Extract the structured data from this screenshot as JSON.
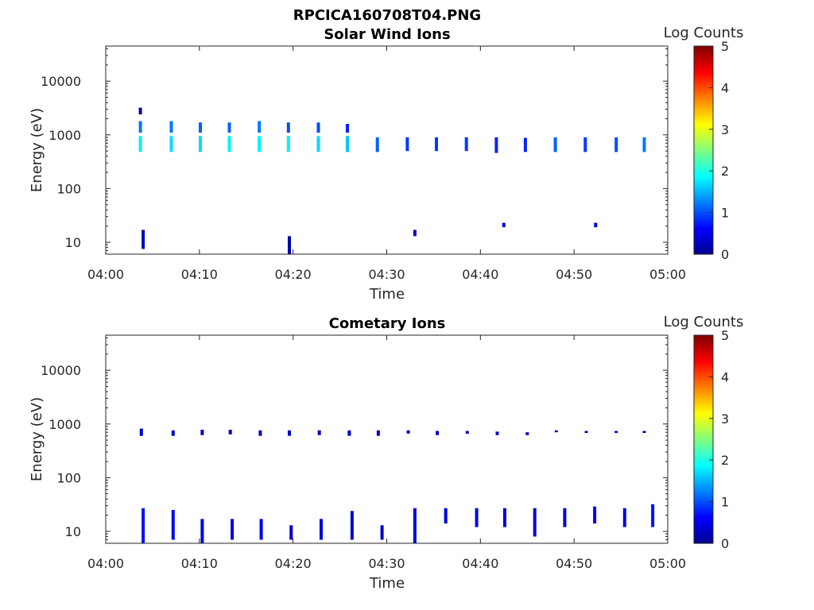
{
  "figure_title": "RPCICA160708T04.PNG",
  "colors": {
    "colormap": [
      "#00008f",
      "#0000ff",
      "#0080ff",
      "#00ffff",
      "#80ff80",
      "#ffff00",
      "#ff8000",
      "#ff0000",
      "#800000"
    ],
    "axis": "#262626"
  },
  "chart_data": [
    {
      "type": "heatmap",
      "title": "Solar Wind Ions",
      "xlabel": "Time",
      "ylabel": "Energy (eV)",
      "xlim": [
        "04:00",
        "05:00"
      ],
      "ylim": [
        6,
        45000
      ],
      "yscale": "log",
      "xticks": [
        "04:00",
        "04:10",
        "04:20",
        "04:30",
        "04:40",
        "04:50",
        "05:00"
      ],
      "yticks": [
        10,
        100,
        1000,
        10000
      ],
      "colorbar": {
        "label": "Log Counts",
        "range": [
          0,
          5
        ],
        "ticks": [
          0,
          1,
          2,
          3,
          4,
          5
        ]
      },
      "cells": [
        {
          "t": 3.7,
          "e_lo": 480,
          "e_hi": 950,
          "v": 1.8
        },
        {
          "t": 3.7,
          "e_lo": 1100,
          "e_hi": 1800,
          "v": 1.2
        },
        {
          "t": 3.7,
          "e_lo": 2400,
          "e_hi": 3200,
          "v": 0.3
        },
        {
          "t": 7.0,
          "e_lo": 480,
          "e_hi": 950,
          "v": 1.7
        },
        {
          "t": 7.0,
          "e_lo": 1100,
          "e_hi": 1800,
          "v": 1.2
        },
        {
          "t": 10.1,
          "e_lo": 480,
          "e_hi": 950,
          "v": 1.7
        },
        {
          "t": 10.1,
          "e_lo": 1100,
          "e_hi": 1700,
          "v": 1.1
        },
        {
          "t": 13.2,
          "e_lo": 480,
          "e_hi": 950,
          "v": 1.8
        },
        {
          "t": 13.2,
          "e_lo": 1100,
          "e_hi": 1700,
          "v": 1.1
        },
        {
          "t": 16.4,
          "e_lo": 480,
          "e_hi": 950,
          "v": 1.8
        },
        {
          "t": 16.4,
          "e_lo": 1100,
          "e_hi": 1800,
          "v": 1.2
        },
        {
          "t": 19.5,
          "e_lo": 480,
          "e_hi": 950,
          "v": 1.8
        },
        {
          "t": 19.5,
          "e_lo": 1100,
          "e_hi": 1700,
          "v": 1.0
        },
        {
          "t": 22.7,
          "e_lo": 480,
          "e_hi": 950,
          "v": 1.7
        },
        {
          "t": 22.7,
          "e_lo": 1100,
          "e_hi": 1700,
          "v": 1.0
        },
        {
          "t": 25.8,
          "e_lo": 480,
          "e_hi": 950,
          "v": 1.6
        },
        {
          "t": 25.8,
          "e_lo": 1100,
          "e_hi": 1600,
          "v": 0.8
        },
        {
          "t": 29.0,
          "e_lo": 480,
          "e_hi": 900,
          "v": 1.1
        },
        {
          "t": 32.2,
          "e_lo": 500,
          "e_hi": 900,
          "v": 0.9
        },
        {
          "t": 35.3,
          "e_lo": 500,
          "e_hi": 900,
          "v": 0.9
        },
        {
          "t": 38.5,
          "e_lo": 500,
          "e_hi": 900,
          "v": 0.9
        },
        {
          "t": 41.7,
          "e_lo": 460,
          "e_hi": 900,
          "v": 0.8
        },
        {
          "t": 44.8,
          "e_lo": 480,
          "e_hi": 880,
          "v": 0.8
        },
        {
          "t": 48.0,
          "e_lo": 480,
          "e_hi": 900,
          "v": 1.1
        },
        {
          "t": 51.2,
          "e_lo": 480,
          "e_hi": 900,
          "v": 0.9
        },
        {
          "t": 54.5,
          "e_lo": 480,
          "e_hi": 900,
          "v": 1.0
        },
        {
          "t": 57.5,
          "e_lo": 480,
          "e_hi": 900,
          "v": 1.2
        },
        {
          "t": 4.0,
          "e_lo": 7.5,
          "e_hi": 17,
          "v": 0.2
        },
        {
          "t": 19.6,
          "e_lo": 6,
          "e_hi": 13,
          "v": 0.2
        },
        {
          "t": 33.0,
          "e_lo": 13,
          "e_hi": 17,
          "v": 0.3
        },
        {
          "t": 42.5,
          "e_lo": 19,
          "e_hi": 23,
          "v": 0.4
        },
        {
          "t": 52.3,
          "e_lo": 19,
          "e_hi": 23,
          "v": 0.4
        }
      ]
    },
    {
      "type": "heatmap",
      "title": "Cometary Ions",
      "xlabel": "Time",
      "ylabel": "Energy (eV)",
      "xlim": [
        "04:00",
        "05:00"
      ],
      "ylim": [
        6,
        45000
      ],
      "yscale": "log",
      "xticks": [
        "04:00",
        "04:10",
        "04:20",
        "04:30",
        "04:40",
        "04:50",
        "05:00"
      ],
      "yticks": [
        10,
        100,
        1000,
        10000
      ],
      "colorbar": {
        "label": "Log Counts",
        "range": [
          0,
          5
        ],
        "ticks": [
          0,
          1,
          2,
          3,
          4,
          5
        ]
      },
      "cells": [
        {
          "t": 3.8,
          "e_lo": 600,
          "e_hi": 820,
          "v": 0.4
        },
        {
          "t": 7.2,
          "e_lo": 600,
          "e_hi": 760,
          "v": 0.3
        },
        {
          "t": 10.3,
          "e_lo": 620,
          "e_hi": 780,
          "v": 0.3
        },
        {
          "t": 13.3,
          "e_lo": 640,
          "e_hi": 780,
          "v": 0.3
        },
        {
          "t": 16.5,
          "e_lo": 600,
          "e_hi": 760,
          "v": 0.3
        },
        {
          "t": 19.6,
          "e_lo": 600,
          "e_hi": 760,
          "v": 0.3
        },
        {
          "t": 22.8,
          "e_lo": 620,
          "e_hi": 760,
          "v": 0.3
        },
        {
          "t": 26.0,
          "e_lo": 600,
          "e_hi": 760,
          "v": 0.3
        },
        {
          "t": 29.1,
          "e_lo": 600,
          "e_hi": 760,
          "v": 0.3
        },
        {
          "t": 32.3,
          "e_lo": 660,
          "e_hi": 760,
          "v": 0.3
        },
        {
          "t": 35.4,
          "e_lo": 620,
          "e_hi": 740,
          "v": 0.3
        },
        {
          "t": 38.6,
          "e_lo": 660,
          "e_hi": 740,
          "v": 0.3
        },
        {
          "t": 41.8,
          "e_lo": 620,
          "e_hi": 720,
          "v": 0.3
        },
        {
          "t": 45.0,
          "e_lo": 620,
          "e_hi": 700,
          "v": 0.3
        },
        {
          "t": 48.1,
          "e_lo": 700,
          "e_hi": 760,
          "v": 0.3
        },
        {
          "t": 51.3,
          "e_lo": 680,
          "e_hi": 740,
          "v": 0.3
        },
        {
          "t": 54.5,
          "e_lo": 680,
          "e_hi": 740,
          "v": 0.3
        },
        {
          "t": 57.5,
          "e_lo": 680,
          "e_hi": 740,
          "v": 0.3
        },
        {
          "t": 4.0,
          "e_lo": 6,
          "e_hi": 27,
          "v": 0.7
        },
        {
          "t": 7.2,
          "e_lo": 7,
          "e_hi": 25,
          "v": 0.5
        },
        {
          "t": 10.3,
          "e_lo": 6,
          "e_hi": 17,
          "v": 0.5
        },
        {
          "t": 13.5,
          "e_lo": 7,
          "e_hi": 17,
          "v": 0.5
        },
        {
          "t": 16.6,
          "e_lo": 7,
          "e_hi": 17,
          "v": 0.5
        },
        {
          "t": 19.8,
          "e_lo": 7,
          "e_hi": 13,
          "v": 0.3
        },
        {
          "t": 23.0,
          "e_lo": 7,
          "e_hi": 17,
          "v": 0.4
        },
        {
          "t": 26.3,
          "e_lo": 7,
          "e_hi": 24,
          "v": 0.4
        },
        {
          "t": 29.5,
          "e_lo": 7,
          "e_hi": 13,
          "v": 0.3
        },
        {
          "t": 33.0,
          "e_lo": 6,
          "e_hi": 27,
          "v": 0.4
        },
        {
          "t": 36.3,
          "e_lo": 14,
          "e_hi": 27,
          "v": 0.4
        },
        {
          "t": 39.6,
          "e_lo": 12,
          "e_hi": 27,
          "v": 0.5
        },
        {
          "t": 42.6,
          "e_lo": 12,
          "e_hi": 27,
          "v": 0.5
        },
        {
          "t": 45.8,
          "e_lo": 8,
          "e_hi": 27,
          "v": 0.4
        },
        {
          "t": 49.0,
          "e_lo": 12,
          "e_hi": 27,
          "v": 0.5
        },
        {
          "t": 52.2,
          "e_lo": 14,
          "e_hi": 29,
          "v": 0.6
        },
        {
          "t": 55.4,
          "e_lo": 12,
          "e_hi": 27,
          "v": 0.5
        },
        {
          "t": 58.4,
          "e_lo": 12,
          "e_hi": 32,
          "v": 0.7
        }
      ]
    }
  ]
}
